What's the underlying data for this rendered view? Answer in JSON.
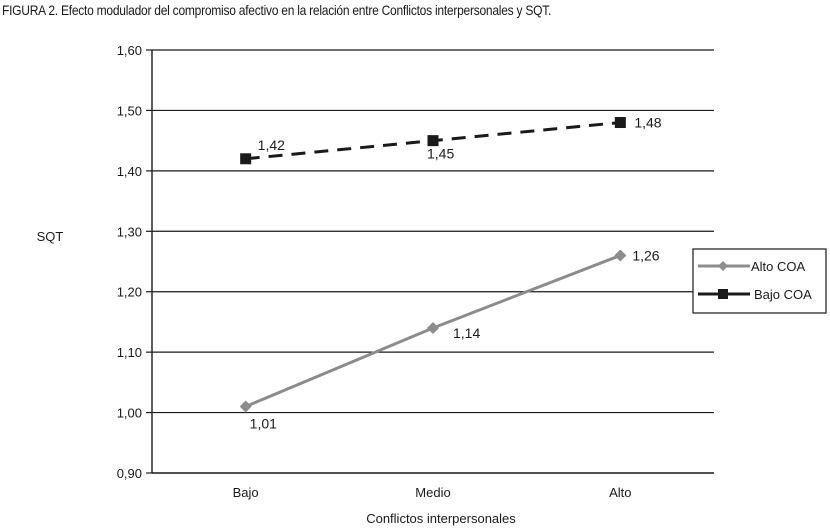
{
  "figure": {
    "title": "FIGURA 2. Efecto modulador del compromiso afectivo en la relación entre Conflictos interpersonales y SQT."
  },
  "chart_data": {
    "type": "line",
    "title": "FIGURA 2. Efecto modulador del compromiso afectivo en la relación entre Conflictos interpersonales y SQT.",
    "xlabel": "Conflictos interpersonales",
    "ylabel": "SQT",
    "categories": [
      "Bajo",
      "Medio",
      "Alto"
    ],
    "ylim": [
      0.9,
      1.6
    ],
    "yticks": [
      0.9,
      1.0,
      1.1,
      1.2,
      1.3,
      1.4,
      1.5,
      1.6
    ],
    "ytick_labels": [
      "0,90",
      "1,00",
      "1,10",
      "1,20",
      "1,30",
      "1,40",
      "1,50",
      "1,60"
    ],
    "grid": "horizontal",
    "legend_position": "right",
    "series": [
      {
        "name": "Alto COA",
        "values": [
          1.01,
          1.14,
          1.26
        ],
        "labels": [
          "1,01",
          "1,14",
          "1,26"
        ],
        "color": "#8c8c8c",
        "marker": "diamond",
        "line_style": "solid"
      },
      {
        "name": "Bajo COA",
        "values": [
          1.42,
          1.45,
          1.48
        ],
        "labels": [
          "1,42",
          "1,45",
          "1,48"
        ],
        "color": "#1a1a1a",
        "marker": "square",
        "line_style": "dashed"
      }
    ]
  }
}
